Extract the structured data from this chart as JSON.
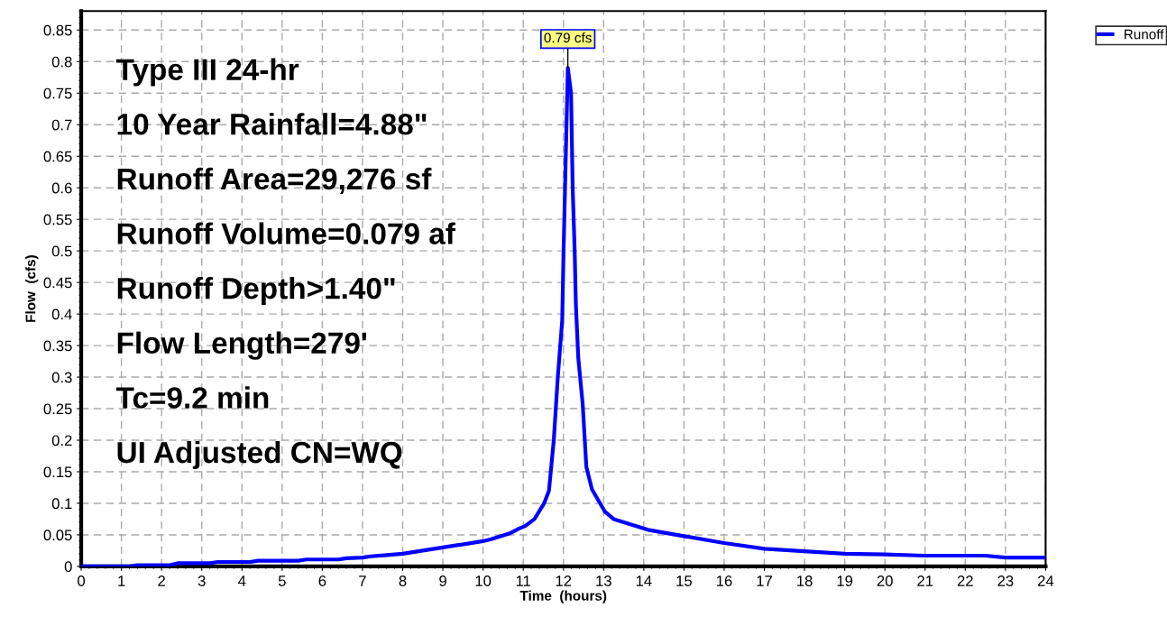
{
  "chart_data": {
    "type": "line",
    "xlabel": "Time  (hours)",
    "ylabel": "Flow  (cfs)",
    "xlim": [
      0,
      24
    ],
    "ylim": [
      0,
      0.88
    ],
    "xticks": [
      0,
      1,
      2,
      3,
      4,
      5,
      6,
      7,
      8,
      9,
      10,
      11,
      12,
      13,
      14,
      15,
      16,
      17,
      18,
      19,
      20,
      21,
      22,
      23,
      24
    ],
    "yticks": [
      0,
      0.05,
      0.1,
      0.15,
      0.2,
      0.25,
      0.3,
      0.35,
      0.4,
      0.45,
      0.5,
      0.55,
      0.6,
      0.65,
      0.7,
      0.75,
      0.8,
      0.85
    ],
    "grid": true,
    "legend": "top right",
    "marker": "none",
    "line_style": "solid",
    "series": [
      {
        "name": "Runoff",
        "color": "#0000ff",
        "x": [
          0,
          1.2,
          1.4,
          2.2,
          2.4,
          3.2,
          3.4,
          4.2,
          4.4,
          5.4,
          5.6,
          6.4,
          6.6,
          7,
          7.2,
          7.6,
          8,
          9,
          10,
          10.2,
          10.65,
          10.9,
          11.05,
          11.28,
          11.52,
          11.64,
          11.76,
          11.86,
          11.97,
          12.0,
          12.11,
          12.19,
          12.23,
          12.28,
          12.31,
          12.37,
          12.48,
          12.57,
          12.71,
          13.03,
          13.25,
          14.1,
          15,
          16,
          17,
          18,
          19,
          20,
          21,
          22.5,
          23,
          24
        ],
        "values": [
          0,
          0,
          0.002,
          0.002,
          0.005,
          0.005,
          0.007,
          0.007,
          0.009,
          0.009,
          0.011,
          0.011,
          0.013,
          0.014,
          0.016,
          0.018,
          0.02,
          0.03,
          0.04,
          0.043,
          0.052,
          0.06,
          0.064,
          0.075,
          0.1,
          0.12,
          0.2,
          0.3,
          0.39,
          0.49,
          0.79,
          0.75,
          0.6,
          0.5,
          0.415,
          0.33,
          0.257,
          0.158,
          0.122,
          0.087,
          0.075,
          0.058,
          0.048,
          0.037,
          0.028,
          0.024,
          0.02,
          0.019,
          0.017,
          0.017,
          0.014,
          0.014
        ]
      }
    ],
    "annotations": [
      {
        "text": "0.79 cfs",
        "x": 12.11,
        "y": 0.79
      },
      "Type III 24-hr",
      "10 Year Rainfall=4.88\"",
      "Runoff Area=29,276 sf",
      "Runoff Volume=0.079 af",
      "Runoff Depth>1.40\"",
      "Flow Length=279'",
      "Tc=9.2 min",
      "UI Adjusted CN=WQ"
    ]
  }
}
